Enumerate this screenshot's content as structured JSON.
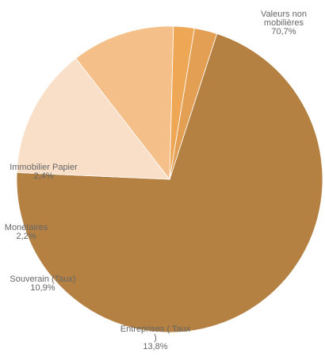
{
  "chart_data": {
    "type": "pie",
    "slices": [
      {
        "label_lines": [
          "Valeurs non",
          "mobilières"
        ],
        "value": 70.7,
        "value_text": "70,7%",
        "color": "#b58143"
      },
      {
        "label_lines": [
          "Entreprises ( Taux",
          ")"
        ],
        "value": 13.8,
        "value_text": "13,8%",
        "color": "#f9dfc7"
      },
      {
        "label_lines": [
          "Souverain (Taux)"
        ],
        "value": 10.9,
        "value_text": "10,9%",
        "color": "#f4bf88"
      },
      {
        "label_lines": [
          "Monétaires"
        ],
        "value": 2.2,
        "value_text": "2,2%",
        "color": "#eea855"
      },
      {
        "label_lines": [
          "Immobilier Papier"
        ],
        "value": 2.4,
        "value_text": "2,4%",
        "color": "#e3a055"
      }
    ],
    "legend": false
  }
}
